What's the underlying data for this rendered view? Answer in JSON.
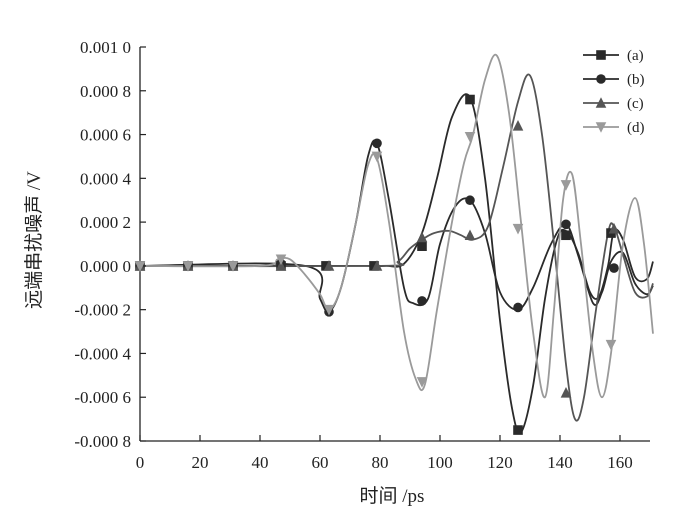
{
  "chart_data": {
    "type": "line",
    "xlabel": "时间 /ps",
    "ylabel": "远端串扰噪声 /V",
    "xlim": [
      0,
      170
    ],
    "ylim": [
      -0.0008,
      0.001
    ],
    "x_ticks": [
      {
        "value": 0,
        "label": "0"
      },
      {
        "value": 20,
        "label": "20"
      },
      {
        "value": 40,
        "label": "40"
      },
      {
        "value": 60,
        "label": "60"
      },
      {
        "value": 80,
        "label": "80"
      },
      {
        "value": 100,
        "label": "100"
      },
      {
        "value": 120,
        "label": "120"
      },
      {
        "value": 140,
        "label": "140"
      },
      {
        "value": 160,
        "label": "160"
      }
    ],
    "y_ticks": [
      {
        "value": 0.001,
        "label": "0.001 0"
      },
      {
        "value": 0.0008,
        "label": "0.000 8"
      },
      {
        "value": 0.0006,
        "label": "0.000 6"
      },
      {
        "value": 0.0004,
        "label": "0.000 4"
      },
      {
        "value": 0.0002,
        "label": "0.000 2"
      },
      {
        "value": 0.0,
        "label": "0.000 0"
      },
      {
        "value": -0.0002,
        "label": "-0.000 2"
      },
      {
        "value": -0.0004,
        "label": "-0.000 4"
      },
      {
        "value": -0.0006,
        "label": "-0.000 6"
      },
      {
        "value": -0.0008,
        "label": "-0.000 8"
      }
    ],
    "legend_position": "top-right",
    "series": [
      {
        "name": "(a)",
        "marker": "square",
        "color": "#2a2a2a",
        "curve": [
          [
            0,
            0
          ],
          [
            50,
            0
          ],
          [
            75,
            0
          ],
          [
            82,
            0
          ],
          [
            88,
            1e-05
          ],
          [
            94,
            0.00015
          ],
          [
            99,
            0.0004
          ],
          [
            104,
            0.00068
          ],
          [
            110,
            0.00077
          ],
          [
            115,
            0.0004
          ],
          [
            120,
            -0.00025
          ],
          [
            124,
            -0.00065
          ],
          [
            127,
            -0.00076
          ],
          [
            131,
            -0.00055
          ],
          [
            135,
            -0.00015
          ],
          [
            139,
            0.00012
          ],
          [
            142,
            0.00016
          ],
          [
            146,
            6e-05
          ],
          [
            150,
            -0.00012
          ],
          [
            153,
            -0.00014
          ],
          [
            156,
            0.0
          ],
          [
            158,
            0.00016
          ],
          [
            161,
            0.00012
          ],
          [
            165,
            -5e-05
          ],
          [
            169,
            -6e-05
          ],
          [
            171,
            2e-05
          ]
        ],
        "markers": [
          [
            0,
            0
          ],
          [
            16,
            0
          ],
          [
            31,
            0
          ],
          [
            47,
            0
          ],
          [
            62,
            0
          ],
          [
            78,
            0
          ],
          [
            94,
            9e-05
          ],
          [
            110,
            0.00076
          ],
          [
            126,
            -0.00075
          ],
          [
            142,
            0.00014
          ],
          [
            157,
            0.00015
          ]
        ]
      },
      {
        "name": "(b)",
        "marker": "circle",
        "color": "#2a2a2a",
        "curve": [
          [
            0,
            0
          ],
          [
            55,
            0
          ],
          [
            60,
            -0.00015
          ],
          [
            63,
            -0.00021
          ],
          [
            67,
            -0.0001
          ],
          [
            72,
            0.0002
          ],
          [
            76,
            0.0005
          ],
          [
            79,
            0.00056
          ],
          [
            83,
            0.0003
          ],
          [
            88,
            -0.0001
          ],
          [
            91,
            -0.00017
          ],
          [
            96,
            -0.00015
          ],
          [
            100,
            0.0001
          ],
          [
            105,
            0.00027
          ],
          [
            110,
            0.0003
          ],
          [
            115,
            0.00015
          ],
          [
            120,
            -0.00012
          ],
          [
            126,
            -0.0002
          ],
          [
            131,
            -0.0001
          ],
          [
            137,
            0.0001
          ],
          [
            142,
            0.00019
          ],
          [
            146,
            5e-05
          ],
          [
            151,
            -0.00017
          ],
          [
            154,
            -0.00012
          ],
          [
            157,
            2e-05
          ],
          [
            161,
            6e-05
          ],
          [
            165,
            -8e-05
          ],
          [
            169,
            -0.00013
          ],
          [
            171,
            -9e-05
          ]
        ],
        "markers": [
          [
            0,
            0
          ],
          [
            16,
            0
          ],
          [
            31,
            0
          ],
          [
            47,
            1e-05
          ],
          [
            63,
            -0.00021
          ],
          [
            79,
            0.00056
          ],
          [
            94,
            -0.00016
          ],
          [
            110,
            0.0003
          ],
          [
            126,
            -0.00019
          ],
          [
            142,
            0.00019
          ],
          [
            158,
            -1e-05
          ]
        ]
      },
      {
        "name": "(c)",
        "marker": "triangle",
        "color": "#555555",
        "curve": [
          [
            0,
            0
          ],
          [
            80,
            0
          ],
          [
            86,
            2e-05
          ],
          [
            90,
            8e-05
          ],
          [
            94,
            0.00012
          ],
          [
            98,
            0.00015
          ],
          [
            103,
            0.00016
          ],
          [
            107,
            0.00014
          ],
          [
            111,
            0.00012
          ],
          [
            116,
            0.00018
          ],
          [
            121,
            0.00045
          ],
          [
            126,
            0.00075
          ],
          [
            130,
            0.00087
          ],
          [
            134,
            0.0006
          ],
          [
            138,
            0.0001
          ],
          [
            142,
            -0.00045
          ],
          [
            145,
            -0.0007
          ],
          [
            148,
            -0.0006
          ],
          [
            152,
            -0.0002
          ],
          [
            156,
            0.00015
          ],
          [
            158,
            0.00018
          ],
          [
            161,
            5e-05
          ],
          [
            165,
            -0.00012
          ],
          [
            169,
            -0.00014
          ],
          [
            171,
            -8e-05
          ]
        ],
        "markers": [
          [
            0,
            0
          ],
          [
            16,
            0
          ],
          [
            31,
            0
          ],
          [
            47,
            0
          ],
          [
            63,
            0
          ],
          [
            79,
            0
          ],
          [
            94,
            0.00013
          ],
          [
            110,
            0.00014
          ],
          [
            126,
            0.00064
          ],
          [
            142,
            -0.00058
          ],
          [
            158,
            0.00017
          ]
        ]
      },
      {
        "name": "(d)",
        "marker": "triangle-down",
        "color": "#9a9a9a",
        "curve": [
          [
            0,
            0
          ],
          [
            40,
            0
          ],
          [
            46,
            3e-05
          ],
          [
            50,
            3e-05
          ],
          [
            55,
            -4e-05
          ],
          [
            60,
            -0.00013
          ],
          [
            63,
            -0.0002
          ],
          [
            67,
            -0.0001
          ],
          [
            72,
            0.0002
          ],
          [
            76,
            0.00046
          ],
          [
            79,
            0.00049
          ],
          [
            83,
            0.0002
          ],
          [
            88,
            -0.0003
          ],
          [
            92,
            -0.00052
          ],
          [
            95,
            -0.00054
          ],
          [
            99,
            -0.0002
          ],
          [
            104,
            0.0002
          ],
          [
            108,
            0.00047
          ],
          [
            111,
            0.0006
          ],
          [
            115,
            0.00085
          ],
          [
            119,
            0.00096
          ],
          [
            123,
            0.0007
          ],
          [
            127,
            0.0002
          ],
          [
            131,
            -0.0003
          ],
          [
            135,
            -0.0006
          ],
          [
            138,
            -0.0002
          ],
          [
            141,
            0.0003
          ],
          [
            144,
            0.00042
          ],
          [
            147,
            0.0001
          ],
          [
            151,
            -0.0004
          ],
          [
            154,
            -0.0006
          ],
          [
            157,
            -0.0004
          ],
          [
            161,
            0.0001
          ],
          [
            165,
            0.00031
          ],
          [
            168,
            0.0001
          ],
          [
            171,
            -0.00031
          ]
        ],
        "markers": [
          [
            0,
            0
          ],
          [
            16,
            0
          ],
          [
            31,
            0
          ],
          [
            47,
            3e-05
          ],
          [
            63,
            -0.0002
          ],
          [
            79,
            0.0005
          ],
          [
            94,
            -0.00053
          ],
          [
            110,
            0.00059
          ],
          [
            126,
            0.00017
          ],
          [
            142,
            0.00037
          ],
          [
            157,
            -0.00036
          ]
        ]
      }
    ]
  }
}
